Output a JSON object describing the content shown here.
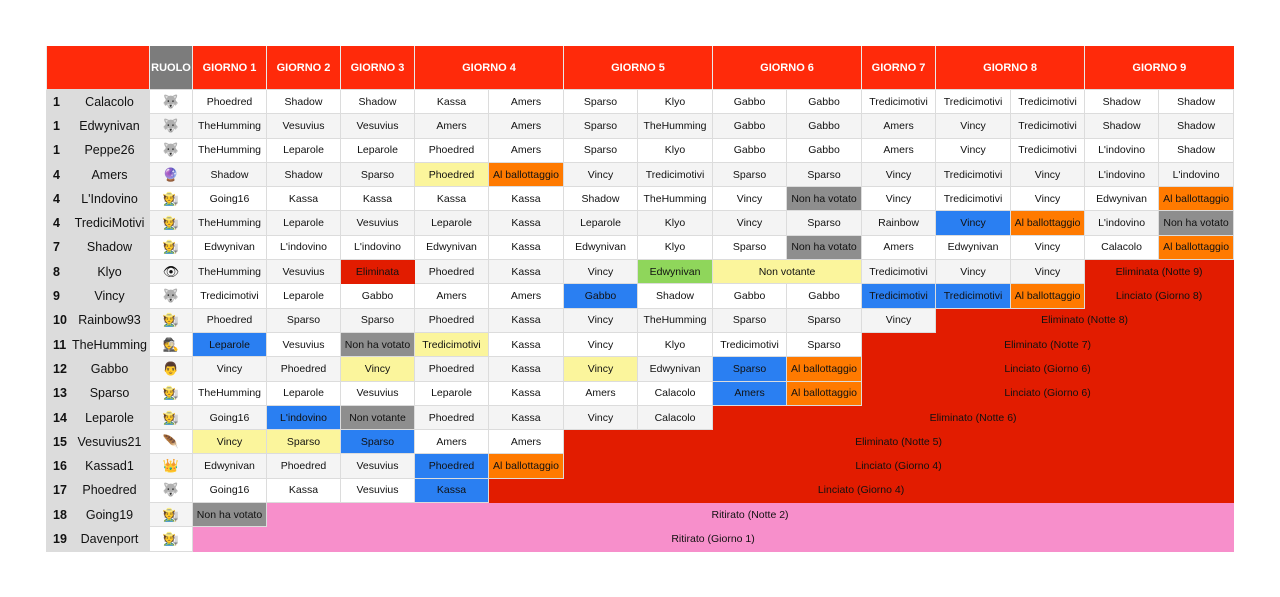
{
  "header": {
    "corner": "",
    "ruolo": "RUOLO",
    "days": [
      {
        "label": "GIORNO 1",
        "span": 1
      },
      {
        "label": "GIORNO 2",
        "span": 1
      },
      {
        "label": "GIORNO 3",
        "span": 1
      },
      {
        "label": "GIORNO 4",
        "span": 2
      },
      {
        "label": "GIORNO 5",
        "span": 2
      },
      {
        "label": "GIORNO 6",
        "span": 2
      },
      {
        "label": "GIORNO 7",
        "span": 1
      },
      {
        "label": "GIORNO 8",
        "span": 2
      },
      {
        "label": "GIORNO 9",
        "span": 2
      }
    ]
  },
  "colors": {
    "header": "#ff2a0a",
    "ruolo_header": "#7c7c7c",
    "yellow": "#fbf59c",
    "orange": "#ff7a00",
    "blue": "#2a7ff2",
    "grey": "#8e8e8e",
    "green": "#8fd65b",
    "red": "#e21c00",
    "pink": "#f78fcb"
  },
  "players": [
    {
      "rank": "1",
      "name": "Calacolo",
      "role": "wolf-icon",
      "cells": [
        {
          "t": "Phoedred"
        },
        {
          "t": "Shadow"
        },
        {
          "t": "Shadow"
        },
        {
          "t": "Kassa"
        },
        {
          "t": "Amers"
        },
        {
          "t": "Sparso"
        },
        {
          "t": "Klyo"
        },
        {
          "t": "Gabbo"
        },
        {
          "t": "Gabbo"
        },
        {
          "t": "Tredicimotivi"
        },
        {
          "t": "Tredicimotivi"
        },
        {
          "t": "Tredicimotivi"
        },
        {
          "t": "Shadow"
        },
        {
          "t": "Shadow"
        }
      ]
    },
    {
      "rank": "1",
      "name": "Edwynivan",
      "role": "wolf-icon",
      "cells": [
        {
          "t": "TheHumming"
        },
        {
          "t": "Vesuvius"
        },
        {
          "t": "Vesuvius"
        },
        {
          "t": "Amers"
        },
        {
          "t": "Amers"
        },
        {
          "t": "Sparso"
        },
        {
          "t": "TheHumming"
        },
        {
          "t": "Gabbo"
        },
        {
          "t": "Gabbo"
        },
        {
          "t": "Amers"
        },
        {
          "t": "Vincy"
        },
        {
          "t": "Tredicimotivi"
        },
        {
          "t": "Shadow"
        },
        {
          "t": "Shadow"
        }
      ]
    },
    {
      "rank": "1",
      "name": "Peppe26",
      "role": "wolf-icon",
      "cells": [
        {
          "t": "TheHumming"
        },
        {
          "t": "Leparole"
        },
        {
          "t": "Leparole"
        },
        {
          "t": "Phoedred"
        },
        {
          "t": "Amers"
        },
        {
          "t": "Sparso"
        },
        {
          "t": "Klyo"
        },
        {
          "t": "Gabbo"
        },
        {
          "t": "Gabbo"
        },
        {
          "t": "Amers"
        },
        {
          "t": "Vincy"
        },
        {
          "t": "Tredicimotivi"
        },
        {
          "t": "L'indovino"
        },
        {
          "t": "Shadow"
        }
      ]
    },
    {
      "rank": "4",
      "name": "Amers",
      "role": "crystal-ball-icon",
      "cells": [
        {
          "t": "Shadow"
        },
        {
          "t": "Shadow"
        },
        {
          "t": "Sparso"
        },
        {
          "t": "Phoedred",
          "c": "yellow"
        },
        {
          "t": "Al ballottaggio",
          "c": "orange"
        },
        {
          "t": "Vincy"
        },
        {
          "t": "Tredicimotivi"
        },
        {
          "t": "Sparso"
        },
        {
          "t": "Sparso"
        },
        {
          "t": "Vincy"
        },
        {
          "t": "Tredicimotivi"
        },
        {
          "t": "Vincy"
        },
        {
          "t": "L'indovino"
        },
        {
          "t": "L'indovino"
        }
      ]
    },
    {
      "rank": "4",
      "name": "L'Indovino",
      "role": "farmer-icon",
      "cells": [
        {
          "t": "Going16"
        },
        {
          "t": "Kassa"
        },
        {
          "t": "Kassa"
        },
        {
          "t": "Kassa"
        },
        {
          "t": "Kassa"
        },
        {
          "t": "Shadow"
        },
        {
          "t": "TheHumming"
        },
        {
          "t": "Vincy"
        },
        {
          "t": "Non ha votato",
          "c": "grey"
        },
        {
          "t": "Vincy"
        },
        {
          "t": "Tredicimotivi"
        },
        {
          "t": "Vincy"
        },
        {
          "t": "Edwynivan"
        },
        {
          "t": "Al ballottaggio",
          "c": "orange"
        }
      ]
    },
    {
      "rank": "4",
      "name": "TrediciMotivi",
      "role": "farmer-icon",
      "cells": [
        {
          "t": "TheHumming"
        },
        {
          "t": "Leparole"
        },
        {
          "t": "Vesuvius"
        },
        {
          "t": "Leparole"
        },
        {
          "t": "Kassa"
        },
        {
          "t": "Leparole"
        },
        {
          "t": "Klyo"
        },
        {
          "t": "Vincy"
        },
        {
          "t": "Sparso"
        },
        {
          "t": "Rainbow"
        },
        {
          "t": "Vincy",
          "c": "blue"
        },
        {
          "t": "Al ballottaggio",
          "c": "orange"
        },
        {
          "t": "L'indovino"
        },
        {
          "t": "Non ha votato",
          "c": "grey"
        }
      ]
    },
    {
      "rank": "7",
      "name": "Shadow",
      "role": "farmer-icon",
      "cells": [
        {
          "t": "Edwynivan"
        },
        {
          "t": "L'indovino"
        },
        {
          "t": "L'indovino"
        },
        {
          "t": "Edwynivan"
        },
        {
          "t": "Kassa"
        },
        {
          "t": "Edwynivan"
        },
        {
          "t": "Klyo"
        },
        {
          "t": "Sparso"
        },
        {
          "t": "Non ha votato",
          "c": "grey"
        },
        {
          "t": "Amers"
        },
        {
          "t": "Edwynivan"
        },
        {
          "t": "Vincy"
        },
        {
          "t": "Calacolo"
        },
        {
          "t": "Al ballottaggio",
          "c": "orange"
        }
      ]
    },
    {
      "rank": "8",
      "name": "Klyo",
      "role": "eye-icon",
      "cells": [
        {
          "t": "TheHumming"
        },
        {
          "t": "Vesuvius"
        },
        {
          "t": "Eliminata",
          "c": "red"
        },
        {
          "t": "Phoedred"
        },
        {
          "t": "Kassa"
        },
        {
          "t": "Vincy"
        },
        {
          "t": "Edwynivan",
          "c": "green"
        },
        {
          "t": "Non votante",
          "c": "yellow",
          "span": 2
        },
        {
          "t": "Tredicimotivi"
        },
        {
          "t": "Vincy"
        },
        {
          "t": "Vincy"
        },
        {
          "t": "Eliminata (Notte 9)",
          "c": "red",
          "span": 2
        }
      ]
    },
    {
      "rank": "9",
      "name": "Vincy",
      "role": "wolf-icon",
      "cells": [
        {
          "t": "Tredicimotivi"
        },
        {
          "t": "Leparole"
        },
        {
          "t": "Gabbo"
        },
        {
          "t": "Amers"
        },
        {
          "t": "Amers"
        },
        {
          "t": "Gabbo",
          "c": "blue"
        },
        {
          "t": "Shadow"
        },
        {
          "t": "Gabbo"
        },
        {
          "t": "Gabbo"
        },
        {
          "t": "Tredicimotivi",
          "c": "blue"
        },
        {
          "t": "Tredicimotivi",
          "c": "blue"
        },
        {
          "t": "Al ballottaggio",
          "c": "orange"
        },
        {
          "t": "Linciato (Giorno 8)",
          "c": "red",
          "span": 2
        }
      ]
    },
    {
      "rank": "10",
      "name": "Rainbow93",
      "role": "farmer-icon",
      "cells": [
        {
          "t": "Phoedred"
        },
        {
          "t": "Sparso"
        },
        {
          "t": "Sparso"
        },
        {
          "t": "Phoedred"
        },
        {
          "t": "Kassa"
        },
        {
          "t": "Vincy"
        },
        {
          "t": "TheHumming"
        },
        {
          "t": "Sparso"
        },
        {
          "t": "Sparso"
        },
        {
          "t": "Vincy"
        },
        {
          "t": "Eliminato (Notte 8)",
          "c": "red",
          "span": 4
        }
      ]
    },
    {
      "rank": "11",
      "name": "TheHumming",
      "role": "detective-icon",
      "cells": [
        {
          "t": "Leparole",
          "c": "blue"
        },
        {
          "t": "Vesuvius"
        },
        {
          "t": "Non ha votato",
          "c": "grey"
        },
        {
          "t": "Tredicimotivi",
          "c": "yellow"
        },
        {
          "t": "Kassa"
        },
        {
          "t": "Vincy"
        },
        {
          "t": "Klyo"
        },
        {
          "t": "Tredicimotivi"
        },
        {
          "t": "Sparso"
        },
        {
          "t": "Eliminato (Notte 7)",
          "c": "red",
          "span": 5
        }
      ]
    },
    {
      "rank": "12",
      "name": "Gabbo",
      "role": "person-icon",
      "cells": [
        {
          "t": "Vincy"
        },
        {
          "t": "Phoedred"
        },
        {
          "t": "Vincy",
          "c": "yellow"
        },
        {
          "t": "Phoedred"
        },
        {
          "t": "Kassa"
        },
        {
          "t": "Vincy",
          "c": "yellow"
        },
        {
          "t": "Edwynivan"
        },
        {
          "t": "Sparso",
          "c": "blue"
        },
        {
          "t": "Al ballottaggio",
          "c": "orange"
        },
        {
          "t": "Linciato (Giorno 6)",
          "c": "red",
          "span": 5
        }
      ]
    },
    {
      "rank": "13",
      "name": "Sparso",
      "role": "farmer-icon",
      "cells": [
        {
          "t": "TheHumming"
        },
        {
          "t": "Leparole"
        },
        {
          "t": "Vesuvius"
        },
        {
          "t": "Leparole"
        },
        {
          "t": "Kassa"
        },
        {
          "t": "Amers"
        },
        {
          "t": "Calacolo"
        },
        {
          "t": "Amers",
          "c": "blue"
        },
        {
          "t": "Al ballottaggio",
          "c": "orange"
        },
        {
          "t": "Linciato (Giorno 6)",
          "c": "red",
          "span": 5
        }
      ]
    },
    {
      "rank": "14",
      "name": "Leparole",
      "role": "farmer-icon",
      "cells": [
        {
          "t": "Going16"
        },
        {
          "t": "L'indovino",
          "c": "blue"
        },
        {
          "t": "Non votante",
          "c": "grey"
        },
        {
          "t": "Phoedred"
        },
        {
          "t": "Kassa"
        },
        {
          "t": "Vincy"
        },
        {
          "t": "Calacolo"
        },
        {
          "t": "Eliminato (Notte 6)",
          "c": "red",
          "span": 7
        }
      ]
    },
    {
      "rank": "15",
      "name": "Vesuvius21",
      "role": "feather-icon",
      "cells": [
        {
          "t": "Vincy",
          "c": "yellow"
        },
        {
          "t": "Sparso",
          "c": "yellow"
        },
        {
          "t": "Sparso",
          "c": "blue"
        },
        {
          "t": "Amers"
        },
        {
          "t": "Amers"
        },
        {
          "t": "Eliminato (Notte 5)",
          "c": "red",
          "span": 9
        }
      ]
    },
    {
      "rank": "16",
      "name": "Kassad1",
      "role": "crown-icon",
      "cells": [
        {
          "t": "Edwynivan"
        },
        {
          "t": "Phoedred"
        },
        {
          "t": "Vesuvius"
        },
        {
          "t": "Phoedred",
          "c": "blue"
        },
        {
          "t": "Al ballottaggio",
          "c": "orange"
        },
        {
          "t": "Linciato (Giorno 4)",
          "c": "red",
          "span": 9
        }
      ]
    },
    {
      "rank": "17",
      "name": "Phoedred",
      "role": "wolf-icon",
      "cells": [
        {
          "t": "Going16"
        },
        {
          "t": "Kassa"
        },
        {
          "t": "Vesuvius"
        },
        {
          "t": "Kassa",
          "c": "blue"
        },
        {
          "t": "Linciato (Giorno 4)",
          "c": "red",
          "span": 10
        }
      ]
    },
    {
      "rank": "18",
      "name": "Going19",
      "role": "farmer-icon",
      "cells": [
        {
          "t": "Non ha votato",
          "c": "grey"
        },
        {
          "t": "Ritirato (Notte 2)",
          "c": "pink",
          "span": 13
        }
      ]
    },
    {
      "rank": "19",
      "name": "Davenport",
      "role": "farmer-icon",
      "cells": [
        {
          "t": "Ritirato (Giorno 1)",
          "c": "pink",
          "span": 14
        }
      ]
    }
  ],
  "role_glyphs": {
    "wolf-icon": "🐺",
    "crystal-ball-icon": "🔮",
    "farmer-icon": "🧑‍🌾",
    "eye-icon": "👁",
    "detective-icon": "🕵",
    "person-icon": "👨",
    "feather-icon": "🪶",
    "crown-icon": "👑"
  }
}
